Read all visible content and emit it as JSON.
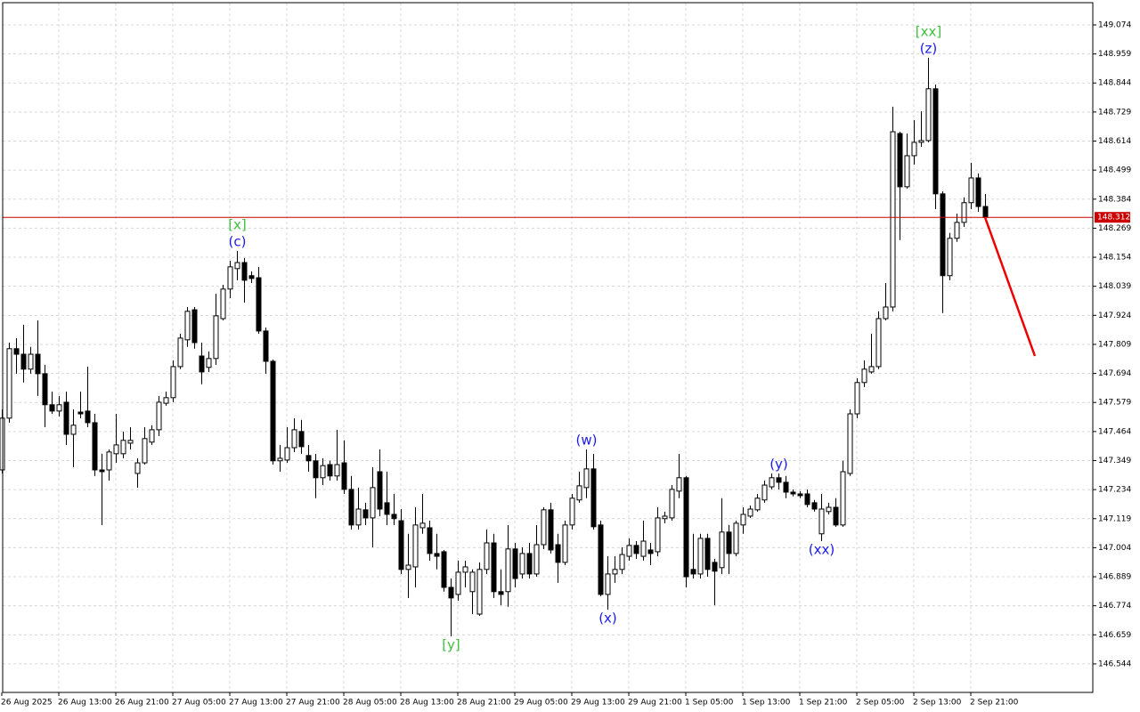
{
  "chart_data": {
    "type": "candlestick",
    "categories": [
      "26 Aug 2025",
      null,
      null,
      null,
      null,
      null,
      null,
      null,
      "26 Aug 13:00",
      null,
      null,
      null,
      null,
      null,
      null,
      null,
      "26 Aug 21:00",
      null,
      null,
      null,
      null,
      null,
      null,
      null,
      "27 Aug 05:00",
      null,
      null,
      null,
      null,
      null,
      null,
      null,
      "27 Aug 13:00",
      null,
      null,
      null,
      null,
      null,
      null,
      null,
      "27 Aug 21:00",
      null,
      null,
      null,
      null,
      null,
      null,
      null,
      "28 Aug 05:00",
      null,
      null,
      null,
      null,
      null,
      null,
      null,
      "28 Aug 13:00",
      null,
      null,
      null,
      null,
      null,
      null,
      null,
      "28 Aug 21:00",
      null,
      null,
      null,
      null,
      null,
      null,
      null,
      "29 Aug 05:00",
      null,
      null,
      null,
      null,
      null,
      null,
      null,
      "29 Aug 13:00",
      null,
      null,
      null,
      null,
      null,
      null,
      null,
      "29 Aug 21:00",
      null,
      null,
      null,
      null,
      null,
      null,
      null,
      "1 Sep 05:00",
      null,
      null,
      null,
      null,
      null,
      null,
      null,
      "1 Sep 13:00",
      null,
      null,
      null,
      null,
      null,
      null,
      null,
      "1 Sep 21:00",
      null,
      null,
      null,
      null,
      null,
      null,
      null,
      "2 Sep 05:00",
      null,
      null,
      null,
      null,
      null,
      null,
      null,
      "2 Sep 13:00",
      null,
      null,
      null,
      null,
      null,
      null,
      null,
      "2 Sep 21:00",
      null,
      null
    ],
    "open": [
      147.312,
      147.517,
      147.792,
      147.77,
      147.711,
      147.77,
      147.693,
      147.57,
      147.545,
      147.58,
      147.453,
      147.541,
      147.545,
      147.499,
      147.312,
      147.312,
      147.376,
      147.376,
      147.418,
      147.298,
      147.34,
      147.422,
      147.471,
      147.576,
      147.598,
      147.721,
      147.827,
      147.946,
      147.763,
      147.718,
      147.753,
      147.911,
      148.028,
      148.109,
      148.133,
      148.081,
      148.073,
      147.862,
      147.742,
      147.348,
      147.351,
      147.4,
      147.464,
      147.369,
      147.348,
      147.281,
      147.333,
      147.288,
      147.34,
      147.235,
      147.094,
      147.154,
      147.122,
      147.305,
      147.182,
      147.136,
      147.111,
      146.918,
      146.928,
      147.083,
      147.083,
      146.981,
      146.988,
      146.847,
      146.819,
      146.907,
      146.83,
      146.741,
      146.918,
      147.023,
      146.83,
      146.83,
      146.999,
      146.9,
      146.981,
      146.9,
      147.016,
      147.154,
      147.016,
      146.946,
      147.094,
      147.193,
      147.242,
      147.316,
      147.094,
      146.819,
      146.9,
      146.918,
      146.97,
      147.013,
      146.97,
      146.995,
      146.988,
      147.119,
      147.122,
      147.228,
      147.281,
      146.918,
      146.9,
      147.041,
      146.946,
      146.925,
      147.066,
      146.981,
      147.094,
      147.129,
      147.154,
      147.193,
      147.245,
      147.281,
      147.263,
      147.224,
      147.217,
      147.217,
      147.182,
      147.059,
      147.147,
      147.164,
      147.094,
      147.298,
      147.534,
      147.658,
      147.7,
      147.721,
      147.911,
      147.957,
      148.644,
      148.433,
      148.556,
      148.609,
      148.616,
      148.821,
      148.405,
      148.081,
      148.229,
      148.292,
      148.37,
      148.468,
      148.355
    ],
    "high": [
      147.552,
      147.816,
      147.834,
      147.887,
      147.799,
      147.904,
      147.728,
      147.622,
      147.605,
      147.622,
      147.552,
      147.622,
      147.721,
      147.534,
      147.376,
      147.393,
      147.534,
      147.464,
      147.481,
      147.358,
      147.481,
      147.489,
      147.605,
      147.622,
      147.746,
      147.851,
      147.957,
      147.957,
      147.816,
      147.781,
      148.01,
      148.045,
      148.14,
      148.179,
      148.151,
      148.098,
      148.116,
      147.876,
      147.749,
      147.411,
      147.481,
      147.517,
      147.51,
      147.411,
      147.376,
      147.358,
      147.348,
      147.471,
      147.429,
      147.288,
      147.242,
      147.182,
      147.323,
      147.393,
      147.305,
      147.217,
      147.157,
      147.059,
      147.164,
      147.217,
      147.111,
      147.059,
      146.995,
      146.882,
      146.953,
      146.953,
      146.918,
      146.946,
      147.076,
      147.059,
      146.918,
      147.094,
      147.023,
      147.006,
      147.023,
      147.094,
      147.164,
      147.182,
      147.059,
      147.111,
      147.217,
      147.305,
      147.393,
      147.376,
      147.111,
      146.97,
      146.97,
      147.006,
      147.041,
      147.03,
      147.111,
      147.023,
      147.164,
      147.147,
      147.252,
      147.376,
      147.288,
      147.059,
      147.059,
      147.059,
      146.96,
      147.2,
      147.094,
      147.111,
      147.164,
      147.171,
      147.217,
      147.27,
      147.298,
      147.298,
      147.288,
      147.235,
      147.228,
      147.235,
      147.193,
      147.217,
      147.182,
      147.2,
      147.348,
      147.552,
      147.675,
      147.746,
      147.851,
      147.94,
      148.052,
      148.75,
      148.651,
      148.644,
      148.697,
      148.732,
      148.944,
      148.838,
      148.415,
      148.25,
      148.327,
      148.391,
      148.528,
      148.486,
      148.405
    ],
    "low": [
      147.298,
      147.499,
      147.693,
      147.658,
      147.693,
      147.605,
      147.481,
      147.534,
      147.524,
      147.411,
      147.323,
      147.517,
      147.481,
      147.288,
      147.094,
      147.27,
      147.34,
      147.358,
      147.393,
      147.242,
      147.333,
      147.411,
      147.446,
      147.566,
      147.58,
      147.711,
      147.799,
      147.792,
      147.651,
      147.7,
      147.728,
      147.904,
      147.992,
      148.063,
      147.975,
      148.052,
      147.851,
      147.693,
      147.333,
      147.305,
      147.34,
      147.383,
      147.376,
      147.305,
      147.2,
      147.252,
      147.27,
      147.27,
      147.217,
      147.076,
      147.076,
      147.094,
      147.006,
      147.129,
      147.094,
      147.094,
      146.9,
      146.805,
      146.847,
      147.059,
      146.953,
      146.918,
      146.83,
      146.653,
      146.794,
      146.847,
      146.741,
      146.734,
      146.9,
      146.805,
      146.777,
      146.77,
      146.847,
      146.882,
      146.882,
      146.889,
      146.999,
      146.981,
      146.865,
      146.935,
      147.076,
      147.182,
      147.2,
      147.076,
      146.812,
      146.759,
      146.865,
      146.9,
      146.953,
      146.96,
      146.953,
      146.935,
      146.97,
      147.101,
      147.111,
      147.2,
      146.847,
      146.882,
      146.882,
      146.889,
      146.777,
      146.9,
      146.9,
      146.97,
      147.059,
      147.122,
      147.147,
      147.182,
      147.235,
      147.235,
      147.2,
      147.207,
      147.2,
      147.164,
      147.147,
      147.03,
      147.136,
      147.087,
      147.087,
      147.288,
      147.517,
      147.64,
      147.693,
      147.711,
      147.904,
      147.94,
      148.222,
      148.426,
      148.521,
      148.591,
      148.609,
      148.345,
      147.933,
      148.063,
      148.215,
      148.274,
      148.345,
      148.334,
      148.306
    ],
    "close": [
      147.517,
      147.792,
      147.77,
      147.711,
      147.77,
      147.693,
      147.57,
      147.545,
      147.57,
      147.453,
      147.489,
      147.534,
      147.499,
      147.312,
      147.305,
      147.383,
      147.411,
      147.429,
      147.429,
      147.34,
      147.436,
      147.471,
      147.58,
      147.598,
      147.721,
      147.834,
      147.94,
      147.816,
      147.7,
      147.753,
      147.922,
      148.028,
      148.116,
      148.133,
      148.063,
      148.07,
      147.862,
      147.742,
      147.348,
      147.358,
      147.4,
      147.471,
      147.404,
      147.348,
      147.281,
      147.329,
      147.288,
      147.333,
      147.235,
      147.094,
      147.157,
      147.122,
      147.242,
      147.157,
      147.136,
      147.119,
      146.918,
      146.935,
      147.094,
      147.101,
      146.981,
      146.97,
      146.847,
      146.805,
      146.907,
      146.928,
      146.907,
      146.918,
      147.023,
      146.83,
      146.819,
      146.999,
      146.882,
      146.981,
      146.9,
      147.016,
      147.154,
      146.995,
      146.946,
      147.094,
      147.2,
      147.249,
      147.316,
      147.087,
      146.819,
      146.9,
      146.918,
      146.977,
      147.013,
      146.981,
      147.03,
      146.981,
      147.122,
      147.129,
      147.235,
      147.281,
      146.889,
      146.9,
      147.041,
      146.918,
      146.911,
      147.066,
      146.981,
      147.101,
      147.136,
      147.157,
      147.2,
      147.252,
      147.281,
      147.263,
      147.224,
      147.217,
      147.21,
      147.175,
      147.157,
      147.157,
      147.164,
      147.094,
      147.305,
      147.534,
      147.658,
      147.711,
      147.721,
      147.911,
      147.957,
      148.651,
      148.433,
      148.556,
      148.609,
      148.616,
      148.821,
      148.405,
      148.081,
      148.229,
      148.292,
      148.37,
      148.468,
      148.355,
      148.312
    ],
    "up_color": "#ffffff",
    "down_color": "#000000",
    "ylim": [
      146.431,
      149.162
    ],
    "yticks": [
      149.074,
      148.959,
      148.844,
      148.729,
      148.614,
      148.499,
      148.384,
      148.269,
      148.154,
      148.039,
      147.924,
      147.809,
      147.694,
      147.579,
      147.464,
      147.349,
      147.234,
      147.119,
      147.004,
      146.889,
      146.774,
      146.659,
      146.544
    ],
    "grid": true,
    "current_price": 148.312,
    "current_price_color": "#cc0000",
    "forecast": {
      "color": "#ee0000",
      "values": [
        148.312,
        147.763
      ]
    },
    "annotations": [
      {
        "text": "(c)",
        "color": "#1a1aee",
        "candle": 33,
        "position": "above"
      },
      {
        "text": "[x]",
        "color": "#3cc03c",
        "candle": 33,
        "position": "above"
      },
      {
        "text": "[y]",
        "color": "#3cc03c",
        "candle": 63,
        "position": "below"
      },
      {
        "text": "(w)",
        "color": "#1a1aee",
        "candle": 82,
        "position": "above"
      },
      {
        "text": "(x)",
        "color": "#1a1aee",
        "candle": 85,
        "position": "below"
      },
      {
        "text": "(y)",
        "color": "#1a1aee",
        "candle": 109,
        "position": "above"
      },
      {
        "text": "(xx)",
        "color": "#1a1aee",
        "candle": 115,
        "position": "below"
      },
      {
        "text": "(z)",
        "color": "#1a1aee",
        "candle": 130,
        "position": "above"
      },
      {
        "text": "[xx]",
        "color": "#3cc03c",
        "candle": 130,
        "position": "above"
      }
    ]
  }
}
